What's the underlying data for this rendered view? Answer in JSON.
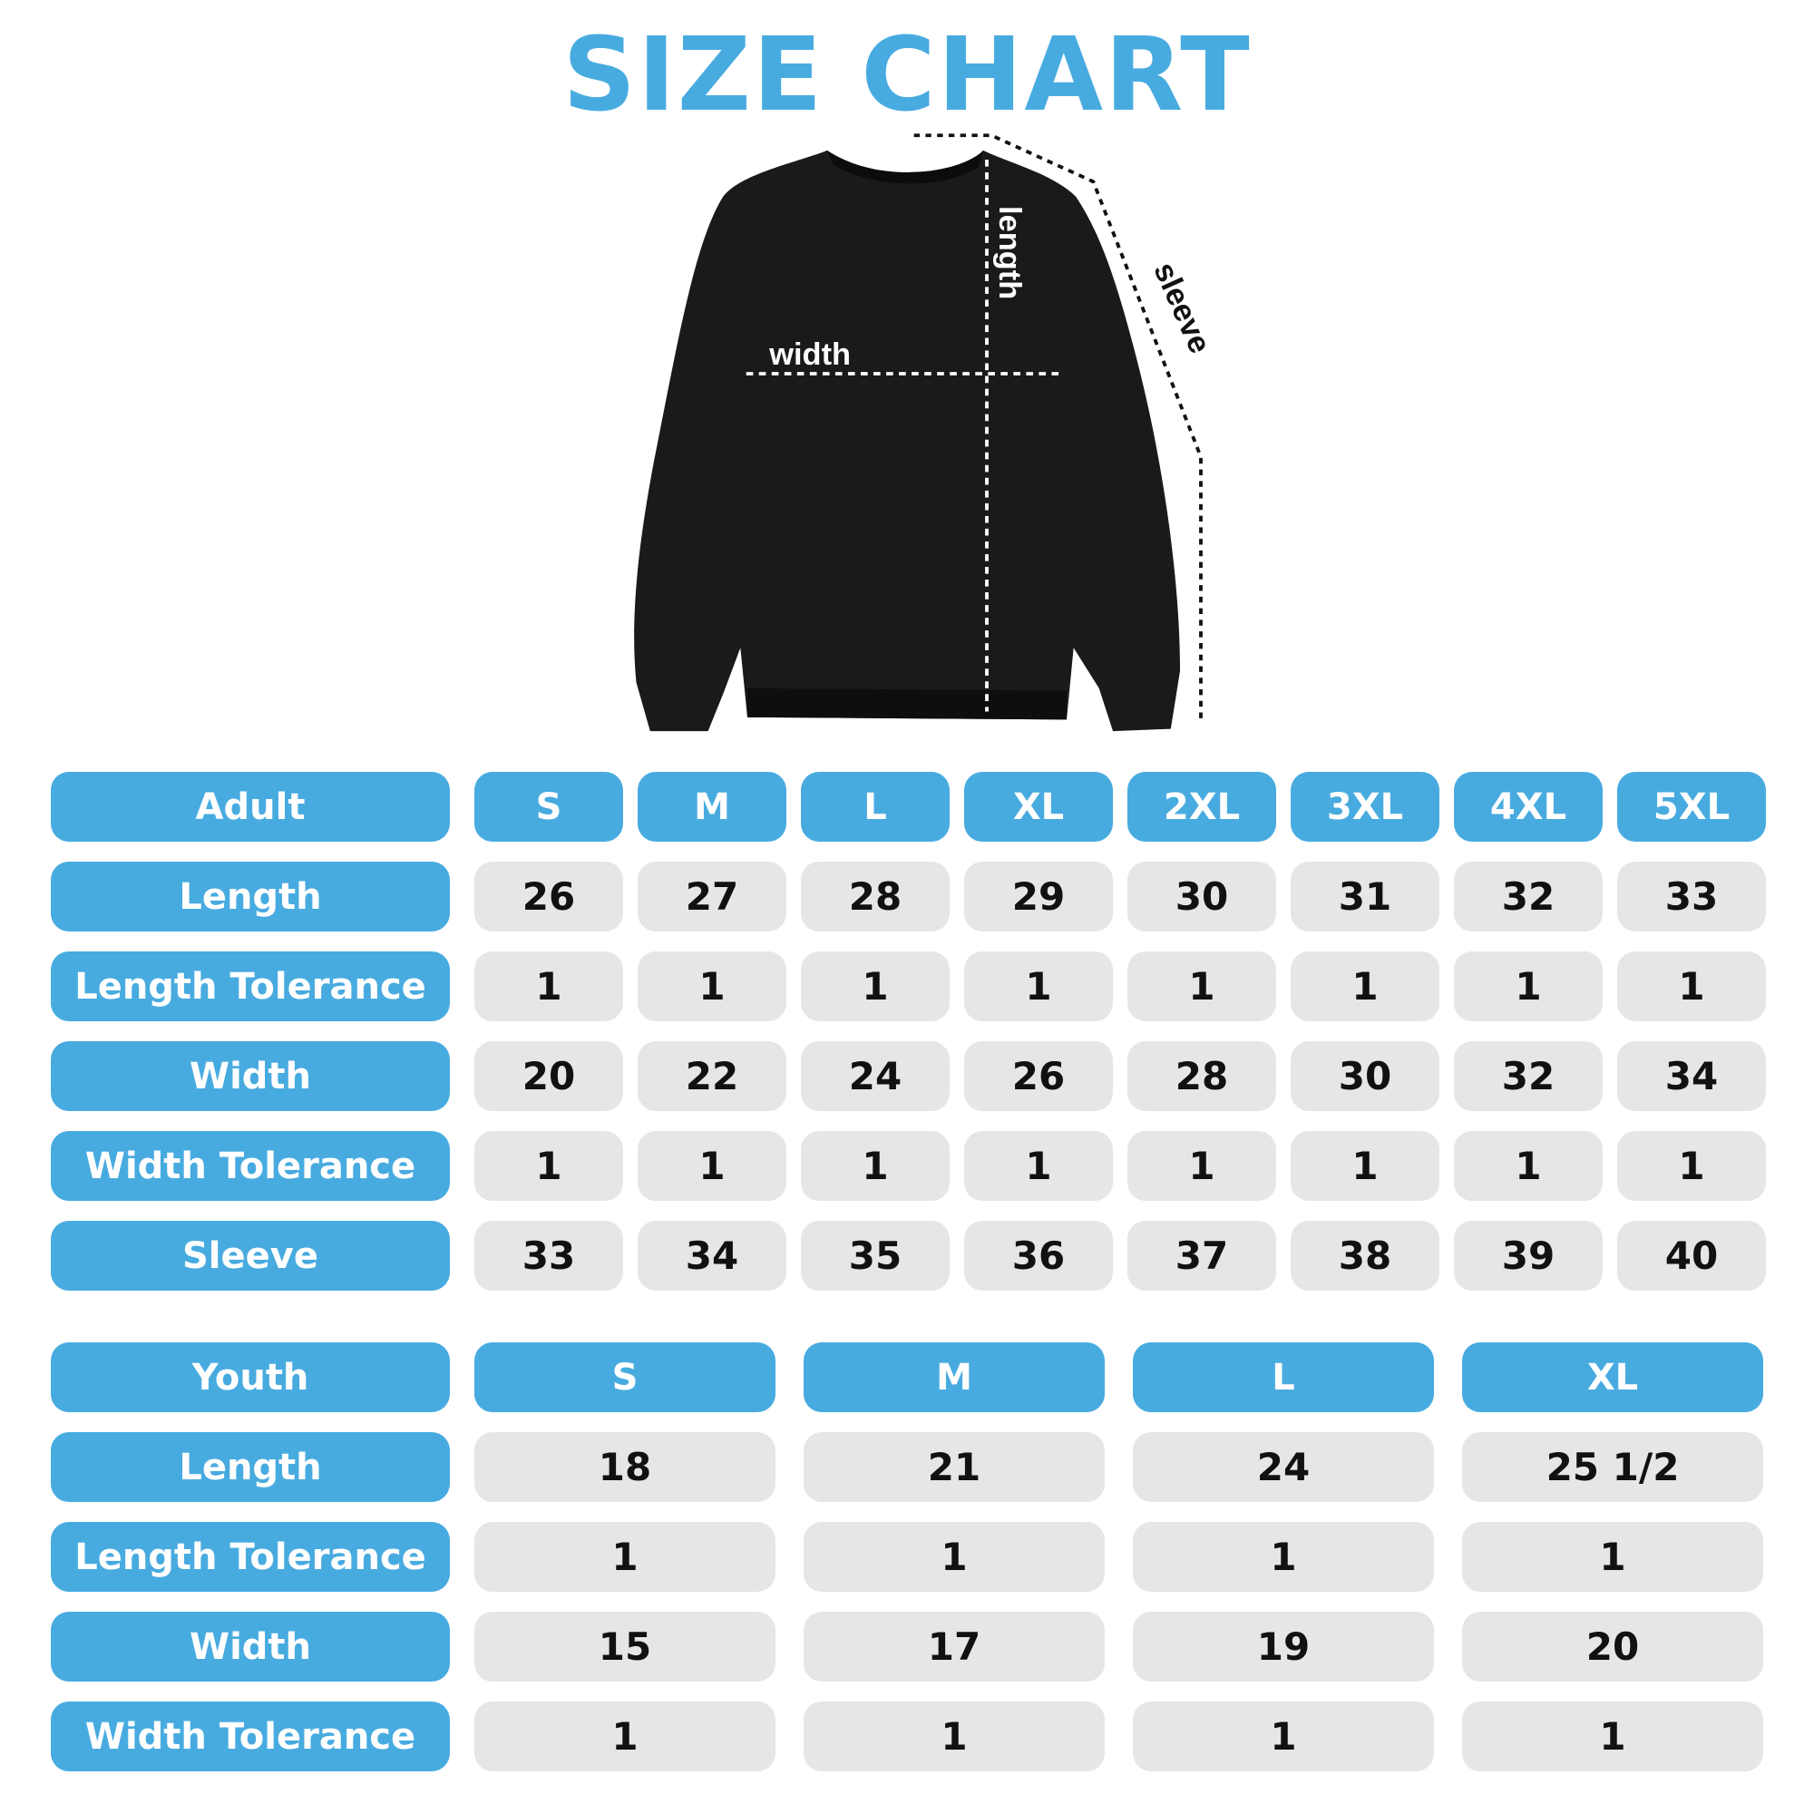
{
  "title": "SIZE CHART",
  "colors": {
    "accent": "#48abe0",
    "cell": "#e6e6e8",
    "text": "#111111"
  },
  "illustration": {
    "width_label": "width",
    "length_label": "length",
    "sleeve_label": "sleeve"
  },
  "adult": {
    "header": "Adult",
    "sizes": [
      "S",
      "M",
      "L",
      "XL",
      "2XL",
      "3XL",
      "4XL",
      "5XL"
    ],
    "rows": [
      {
        "label": "Length",
        "values": [
          "26",
          "27",
          "28",
          "29",
          "30",
          "31",
          "32",
          "33"
        ]
      },
      {
        "label": "Length Tolerance",
        "values": [
          "1",
          "1",
          "1",
          "1",
          "1",
          "1",
          "1",
          "1"
        ]
      },
      {
        "label": "Width",
        "values": [
          "20",
          "22",
          "24",
          "26",
          "28",
          "30",
          "32",
          "34"
        ]
      },
      {
        "label": "Width Tolerance",
        "values": [
          "1",
          "1",
          "1",
          "1",
          "1",
          "1",
          "1",
          "1"
        ]
      },
      {
        "label": "Sleeve",
        "values": [
          "33",
          "34",
          "35",
          "36",
          "37",
          "38",
          "39",
          "40"
        ]
      }
    ]
  },
  "youth": {
    "header": "Youth",
    "sizes": [
      "S",
      "M",
      "L",
      "XL"
    ],
    "rows": [
      {
        "label": "Length",
        "values": [
          "18",
          "21",
          "24",
          "25 1/2"
        ]
      },
      {
        "label": "Length Tolerance",
        "values": [
          "1",
          "1",
          "1",
          "1"
        ]
      },
      {
        "label": "Width",
        "values": [
          "15",
          "17",
          "19",
          "20"
        ]
      },
      {
        "label": "Width Tolerance",
        "values": [
          "1",
          "1",
          "1",
          "1"
        ]
      }
    ]
  }
}
